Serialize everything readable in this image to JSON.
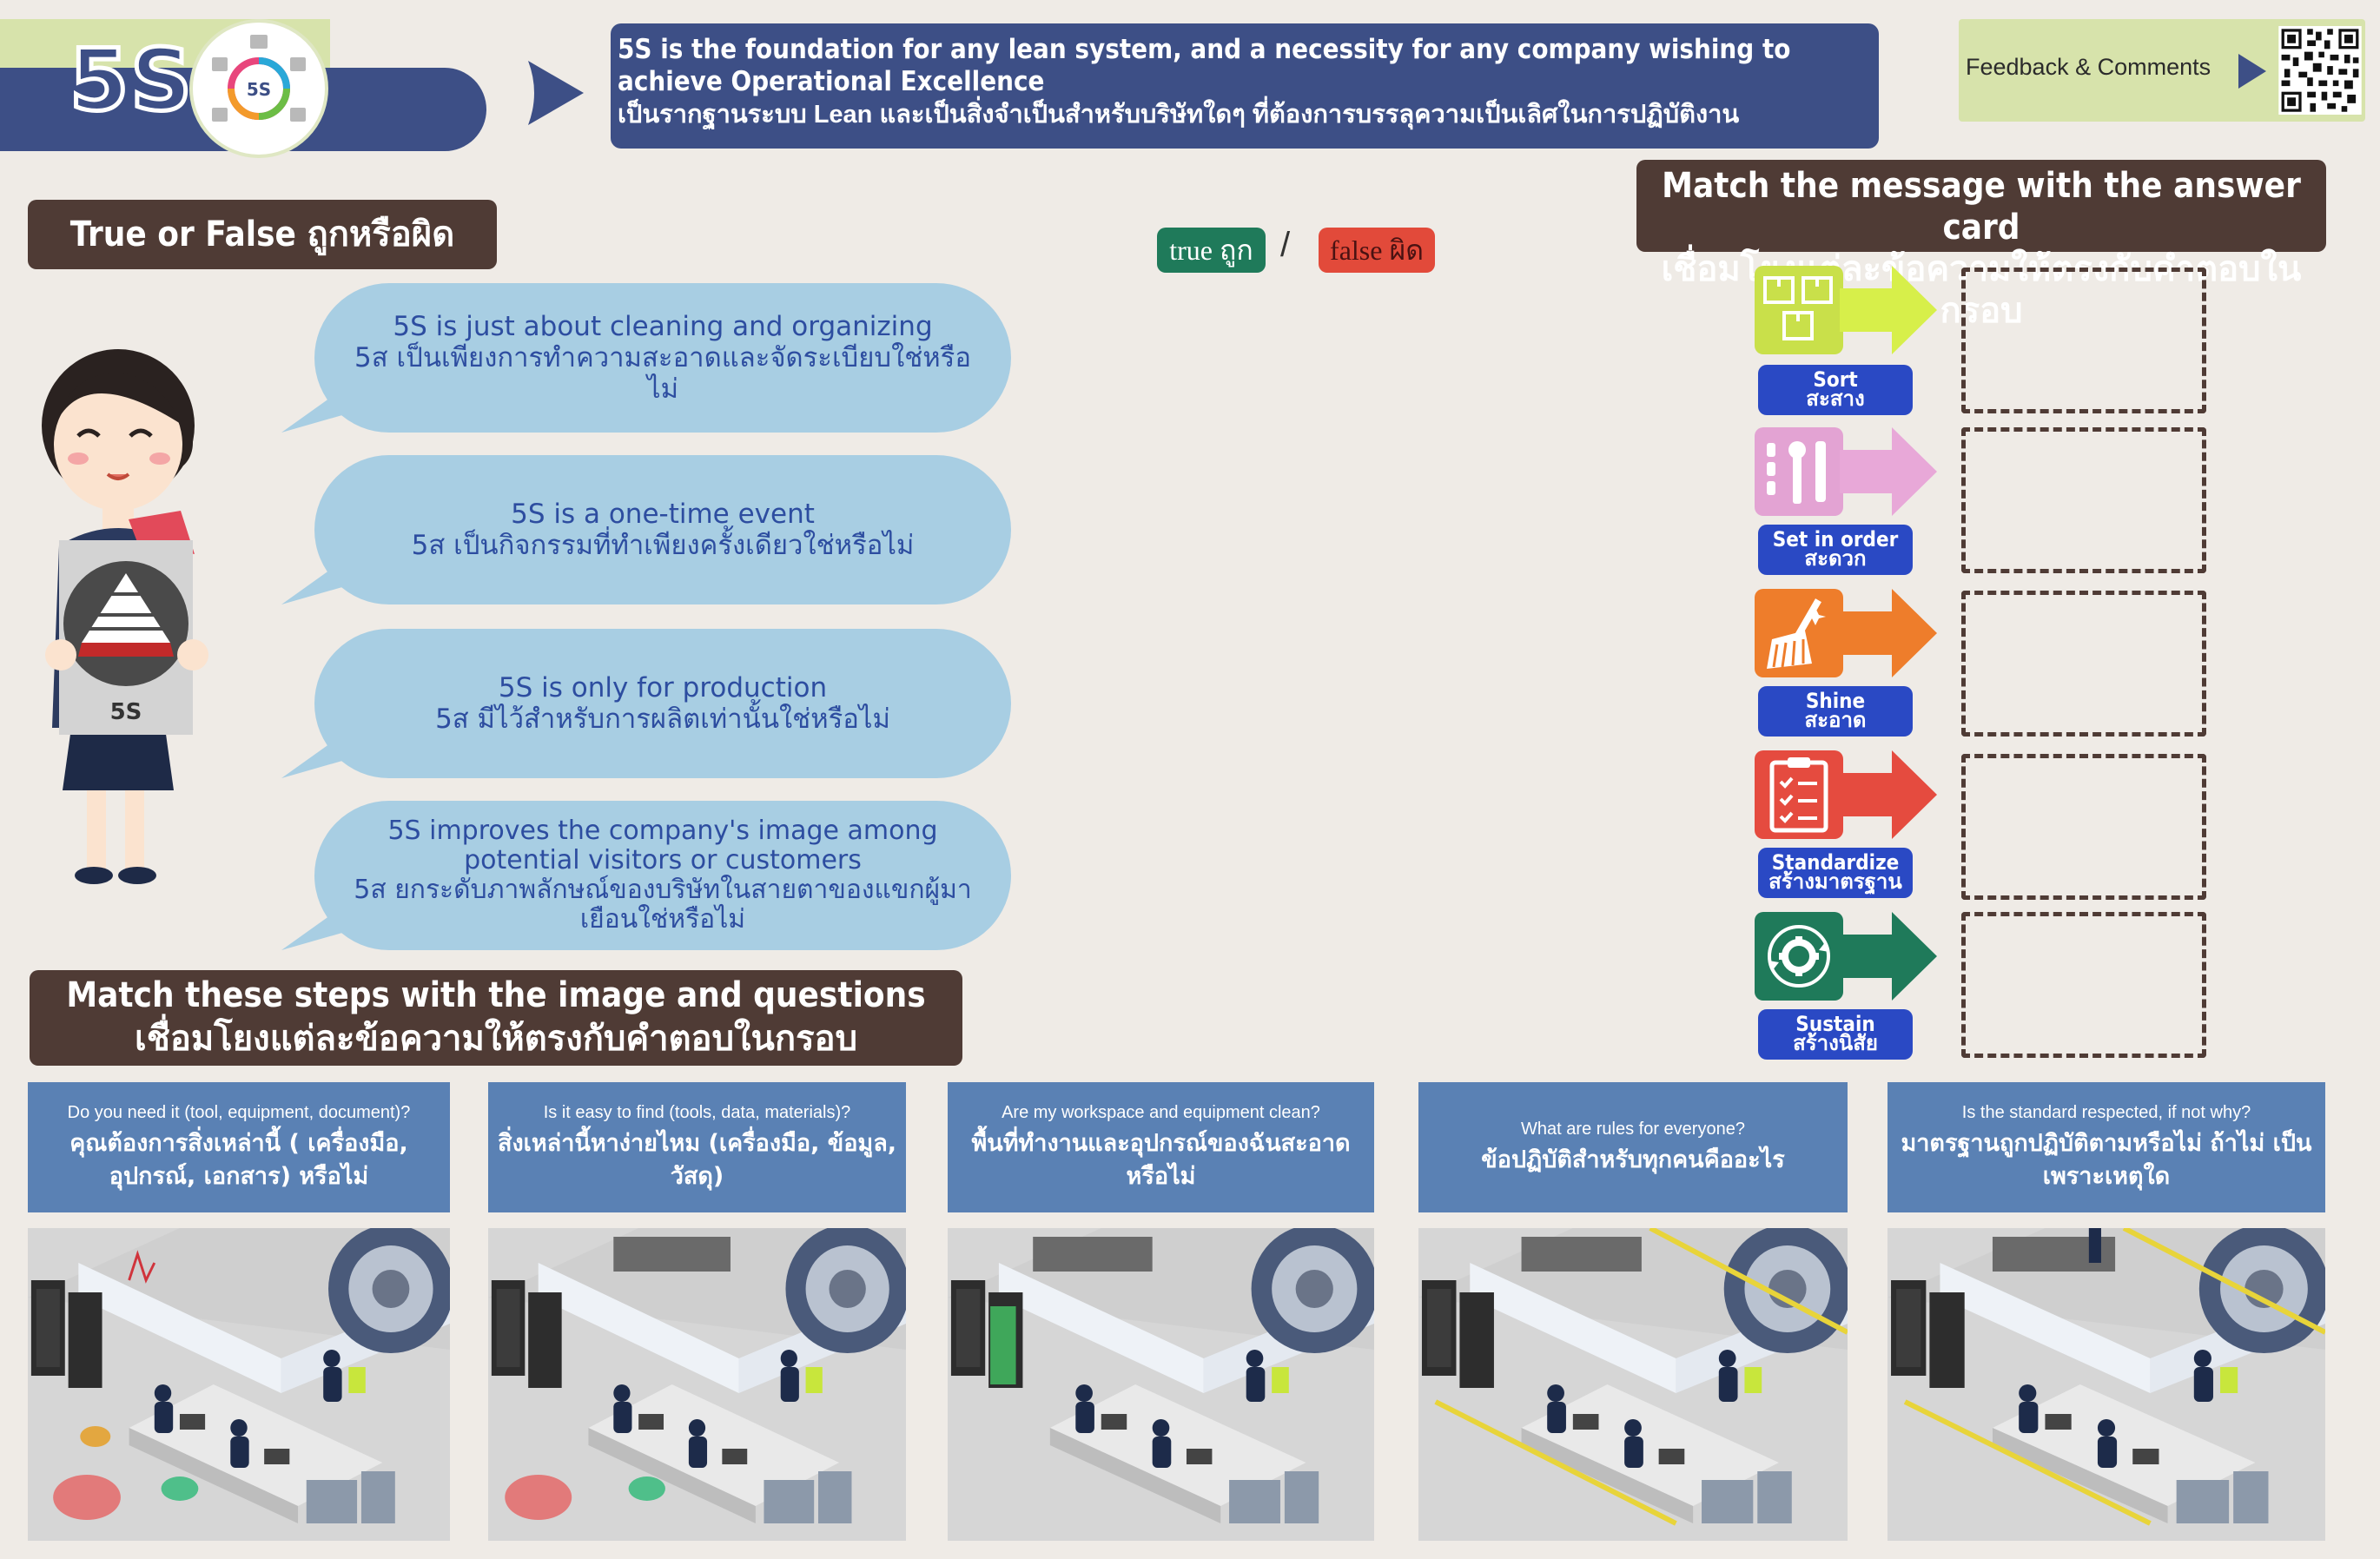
{
  "header": {
    "title": "5S",
    "logo_text": "5S",
    "banner_line_en": "5S is the foundation for any lean system, and a necessity for any company wishing to achieve Operational Excellence",
    "banner_line_th": "เป็นรากฐานระบบ Lean และเป็นสิ่งจำเป็นสำหรับบริษัทใดๆ ที่ต้องการบรรลุความเป็นเลิศในการปฏิบัติงาน",
    "feedback_label": "Feedback & Comments"
  },
  "true_false": {
    "label": "True or False ถูกหรือผิด",
    "true_chip": "true ถูก",
    "slash": "/",
    "false_chip": "false ผิด",
    "figure_sign": "5S",
    "statements": [
      {
        "en": "5S is just about cleaning and organizing",
        "th": "5ส เป็นเพียงการทำความสะอาดและจัดระเบียบใช่หรือไม่"
      },
      {
        "en": "5S is a one-time event",
        "th": "5ส เป็นกิจกรรมที่ทำเพียงครั้งเดียวใช่หรือไม่"
      },
      {
        "en": "5S is only for production",
        "th": "5ส มีไว้สำหรับการผลิตเท่านั้นใช่หรือไม่"
      },
      {
        "en": "5S improves the company's image among potential visitors or customers",
        "th": "5ส ยกระดับภาพลักษณ์ของบริษัทในสายตาของแขกผู้มาเยือนใช่หรือไม่"
      }
    ]
  },
  "match_cards": {
    "label_en": "Match the  message with the answer card",
    "label_th": "เชื่อมโยงแต่ละข้อความให้ตรงกับคำตอบในกรอบ",
    "steps": [
      {
        "en": "Sort",
        "th": "สะสาง",
        "icon": "boxes-icon",
        "color": "#c9e04a"
      },
      {
        "en": "Set in order",
        "th": "สะดวก",
        "icon": "tools-icon",
        "color": "#e3a3d3"
      },
      {
        "en": "Shine",
        "th": "สะอาด",
        "icon": "broom-icon",
        "color": "#ee7d2b"
      },
      {
        "en": "Standardize",
        "th": "สร้างมาตรฐาน",
        "icon": "checklist-icon",
        "color": "#e54b3f"
      },
      {
        "en": "Sustain",
        "th": "สร้างนิสัย",
        "icon": "gear-cycle-icon",
        "color": "#1f7a5a"
      }
    ]
  },
  "steps_section": {
    "label_en": "Match these steps with the image and questions",
    "label_th": "เชื่อมโยงแต่ละข้อความให้ตรงกับคำตอบในกรอบ",
    "questions": [
      {
        "en": "Do you need it (tool, equipment, document)?",
        "th": "คุณต้องการสิ่งเหล่านี้ ( เครื่องมือ, อุปกรณ์, เอกสาร) หรือไม่"
      },
      {
        "en": "Is it easy to find (tools, data, materials)?",
        "th": "สิ่งเหล่านี้หาง่ายไหม (เครื่องมือ, ข้อมูล, วัสดุ)"
      },
      {
        "en": "Are my workspace and equipment clean?",
        "th": "พื้นที่ทำงานและอุปกรณ์ของฉันสะอาดหรือไม่"
      },
      {
        "en": "What are rules for everyone?",
        "th": "ข้อปฏิบัติสำหรับทุกคนคืออะไร"
      },
      {
        "en": "Is the standard respected, if not why?",
        "th": "มาตรฐานถูกปฏิบัติตามหรือไม่ ถ้าไม่ เป็นเพราะเหตุใด"
      }
    ]
  },
  "colors": {
    "navy": "#3d4f86",
    "brown": "#4f3b35",
    "bubble": "#a8cee3",
    "question_card": "#5a81b4",
    "step_button": "#2a49c4"
  }
}
